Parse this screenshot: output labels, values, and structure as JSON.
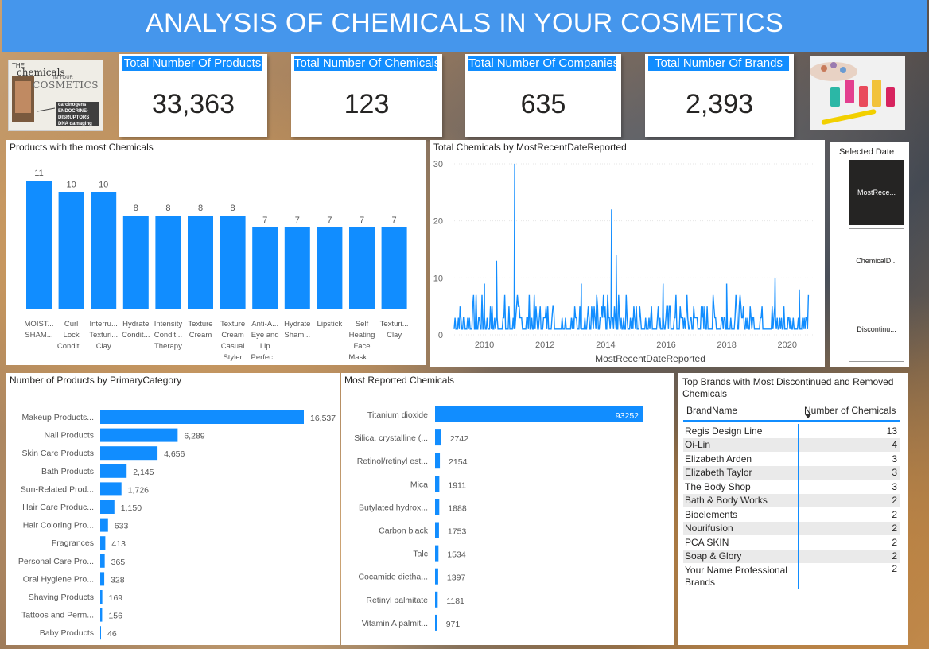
{
  "title": "ANALYSIS OF CHEMICALS IN YOUR COSMETICS",
  "logo": {
    "line1": "chemicals",
    "line2": "THE",
    "line3": "COSMETICS",
    "line4": "IN YOUR",
    "line5": "carcinogens ENDOCRINE-DISRUPTORS DNA damaging"
  },
  "cards": [
    {
      "label": "Total Number Of Products",
      "value": "33,363"
    },
    {
      "label": "Total Number Of Chemicals",
      "value": "123"
    },
    {
      "label": "Total Number Of Companies",
      "value": "635"
    },
    {
      "label": "Total Number Of Brands",
      "value": "2,393"
    }
  ],
  "products_chart": {
    "title": "Products with the most Chemicals",
    "chart_data": {
      "type": "bar",
      "title": "Products with the most Chemicals",
      "categories": [
        [
          "MOIST...",
          "SHAM..."
        ],
        [
          "Curl",
          "Lock",
          "Condit..."
        ],
        [
          "Interru...",
          "Texturi...",
          "Clay"
        ],
        [
          "Hydrate",
          "Condit..."
        ],
        [
          "Intensity",
          "Condit...",
          "Therapy"
        ],
        [
          "Texture",
          "Cream"
        ],
        [
          "Texture",
          "Cream",
          "Casual",
          "Styler"
        ],
        [
          "Anti-A...",
          "Eye and",
          "Lip",
          "Perfec..."
        ],
        [
          "Hydrate",
          "Sham..."
        ],
        [
          "Lipstick"
        ],
        [
          "Self",
          "Heating",
          "Face",
          "Mask ..."
        ],
        [
          "Texturi...",
          "Clay"
        ]
      ],
      "values": [
        11,
        10,
        10,
        8,
        8,
        8,
        8,
        7,
        7,
        7,
        7,
        7
      ],
      "ylim": [
        0,
        11
      ],
      "color": "#118dff"
    }
  },
  "timeline_chart": {
    "title": "Total Chemicals by MostRecentDateReported",
    "chart_data": {
      "type": "line",
      "title": "Total Chemicals by MostRecentDateReported",
      "xlabel": "MostRecentDateReported",
      "ylabel": "",
      "xlim": [
        2009.0,
        2020.9
      ],
      "ylim": [
        0,
        30
      ],
      "x_ticks": [
        2010,
        2012,
        2014,
        2016,
        2018,
        2020
      ],
      "y_ticks": [
        0,
        10,
        20,
        30
      ],
      "spikes": [
        {
          "x": 2010.0,
          "y": 9
        },
        {
          "x": 2010.4,
          "y": 13
        },
        {
          "x": 2011.0,
          "y": 30
        },
        {
          "x": 2013.2,
          "y": 9
        },
        {
          "x": 2014.2,
          "y": 22
        },
        {
          "x": 2014.35,
          "y": 14
        },
        {
          "x": 2015.9,
          "y": 9
        },
        {
          "x": 2018.0,
          "y": 9
        },
        {
          "x": 2019.6,
          "y": 10
        },
        {
          "x": 2020.4,
          "y": 8
        }
      ],
      "baseline": [
        1,
        5
      ],
      "color": "#118dff"
    }
  },
  "slicer": {
    "title": "Selected Date",
    "options": [
      "MostRece...",
      "ChemicalD...",
      "Discontinu..."
    ],
    "selected": 0
  },
  "category_chart": {
    "title": "Number of Products by PrimaryCategory",
    "chart_data": {
      "type": "bar",
      "orientation": "horizontal",
      "title": "Number of Products by PrimaryCategory",
      "categories": [
        "Makeup Products...",
        "Nail Products",
        "Skin Care Products",
        "Bath Products",
        "Sun-Related Prod...",
        "Hair Care Produc...",
        "Hair Coloring Pro...",
        "Fragrances",
        "Personal Care Pro...",
        "Oral Hygiene Pro...",
        "Shaving Products",
        "Tattoos and Perm...",
        "Baby Products"
      ],
      "values": [
        16537,
        6289,
        4656,
        2145,
        1726,
        1150,
        633,
        413,
        365,
        328,
        169,
        156,
        46
      ],
      "labels": [
        "16,537",
        "6,289",
        "4,656",
        "2,145",
        "1,726",
        "1,150",
        "633",
        "413",
        "365",
        "328",
        "169",
        "156",
        "46"
      ],
      "xlim": [
        0,
        16537
      ],
      "color": "#118dff"
    }
  },
  "chemicals_chart": {
    "title": "Most Reported Chemicals",
    "chart_data": {
      "type": "bar",
      "orientation": "horizontal",
      "title": "Most Reported Chemicals",
      "categories": [
        "Titanium dioxide",
        "Silica, crystalline (...",
        "Retinol/retinyl est...",
        "Mica",
        "Butylated hydrox...",
        "Carbon black",
        "Talc",
        "Cocamide dietha...",
        "Retinyl palmitate",
        "Vitamin A palmit..."
      ],
      "values": [
        93252,
        2742,
        2154,
        1911,
        1888,
        1753,
        1534,
        1397,
        1181,
        971
      ],
      "xlim": [
        0,
        93252
      ],
      "color": "#118dff"
    }
  },
  "brands_table": {
    "title": "Top Brands with Most Discontinued and Removed Chemicals",
    "col1": "BrandName",
    "col2": "Number of Chemicals",
    "rows": [
      {
        "brand": "Regis Design Line",
        "count": "13"
      },
      {
        "brand": "Oi-Lin",
        "count": "4"
      },
      {
        "brand": "Elizabeth Arden",
        "count": "3"
      },
      {
        "brand": "Elizabeth Taylor",
        "count": "3"
      },
      {
        "brand": "The Body Shop",
        "count": "3"
      },
      {
        "brand": "Bath & Body Works",
        "count": "2"
      },
      {
        "brand": "Bioelements",
        "count": "2"
      },
      {
        "brand": "Nourifusion",
        "count": "2"
      },
      {
        "brand": "PCA SKIN",
        "count": "2"
      },
      {
        "brand": "Soap & Glory",
        "count": "2"
      },
      {
        "brand": "Your Name Professional Brands",
        "count": "2"
      }
    ]
  }
}
